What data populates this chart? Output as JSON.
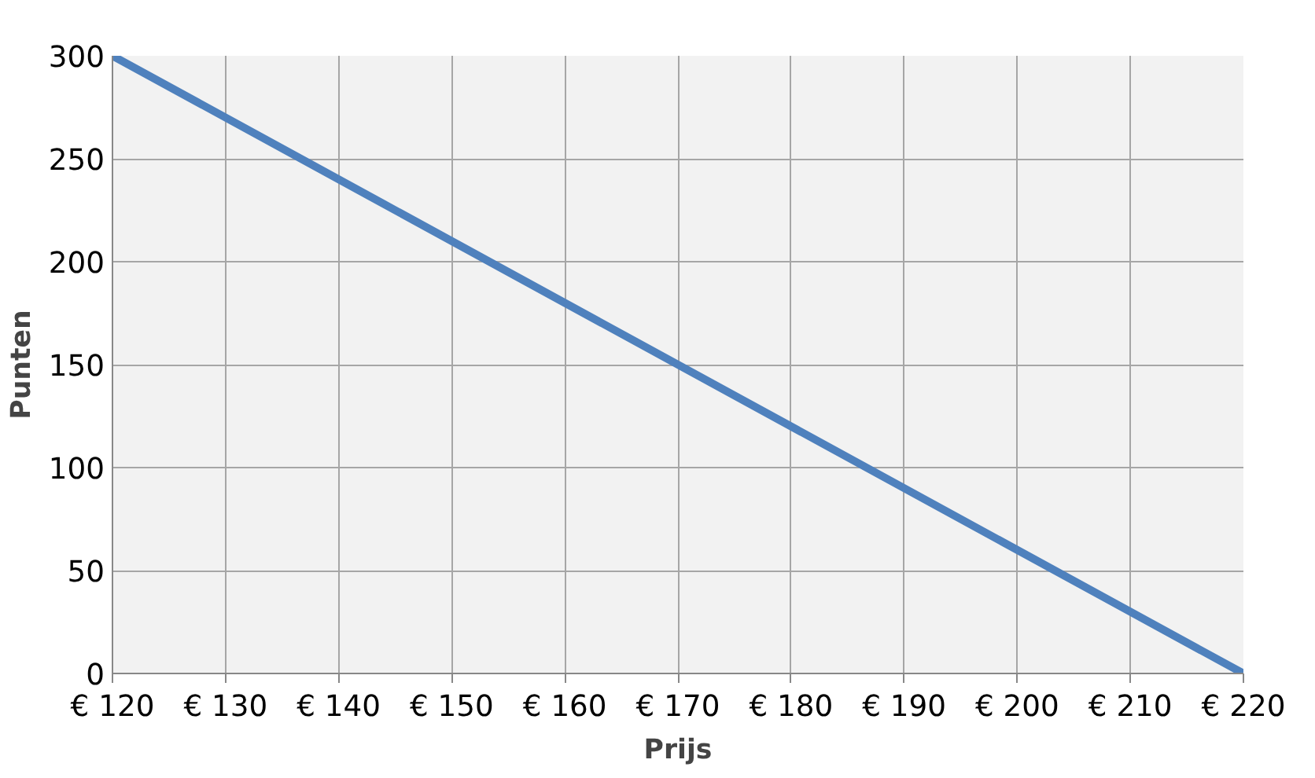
{
  "chart_data": {
    "type": "line",
    "xlabel": "Prijs",
    "ylabel": "Punten",
    "x": [
      120,
      220
    ],
    "series": [
      {
        "color": "#4f81bd",
        "values": [
          300,
          0
        ]
      }
    ],
    "xlim": [
      120,
      220
    ],
    "xticks": [
      {
        "value": 120,
        "label": "€ 120"
      },
      {
        "value": 130,
        "label": "€ 130"
      },
      {
        "value": 140,
        "label": "€ 140"
      },
      {
        "value": 150,
        "label": "€ 150"
      },
      {
        "value": 160,
        "label": "€ 160"
      },
      {
        "value": 170,
        "label": "€ 170"
      },
      {
        "value": 180,
        "label": "€ 180"
      },
      {
        "value": 190,
        "label": "€ 190"
      },
      {
        "value": 200,
        "label": "€ 200"
      },
      {
        "value": 210,
        "label": "€ 210"
      },
      {
        "value": 220,
        "label": "€ 220"
      }
    ],
    "ylim": [
      0,
      300
    ],
    "yticks": [
      0,
      50,
      100,
      150,
      200,
      250,
      300
    ],
    "grid": true,
    "marker": "none",
    "line_style": "solid"
  }
}
